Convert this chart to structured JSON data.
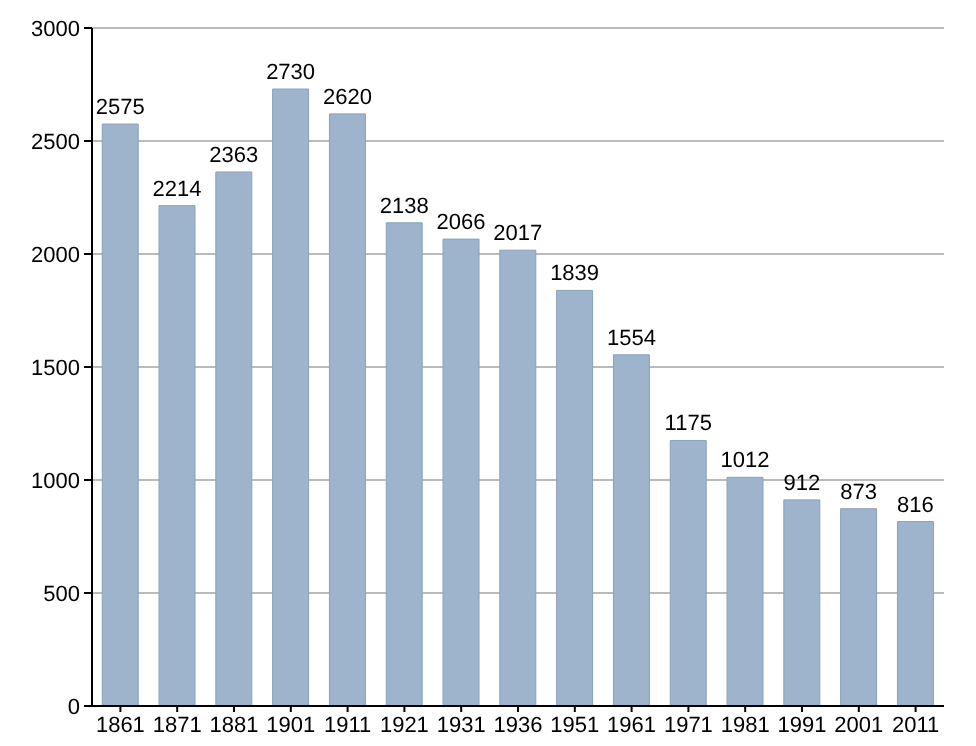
{
  "chart_data": {
    "type": "bar",
    "categories": [
      "1861",
      "1871",
      "1881",
      "1901",
      "1911",
      "1921",
      "1931",
      "1936",
      "1951",
      "1961",
      "1971",
      "1981",
      "1991",
      "2001",
      "2011"
    ],
    "values": [
      2575,
      2214,
      2363,
      2730,
      2620,
      2138,
      2066,
      2017,
      1839,
      1554,
      1175,
      1012,
      912,
      873,
      816
    ],
    "color": "#9db4cc",
    "ylim": [
      0,
      3000
    ],
    "yticks": [
      0,
      500,
      1000,
      1500,
      2000,
      2500,
      3000
    ],
    "grid": "y",
    "data_labels": true
  }
}
